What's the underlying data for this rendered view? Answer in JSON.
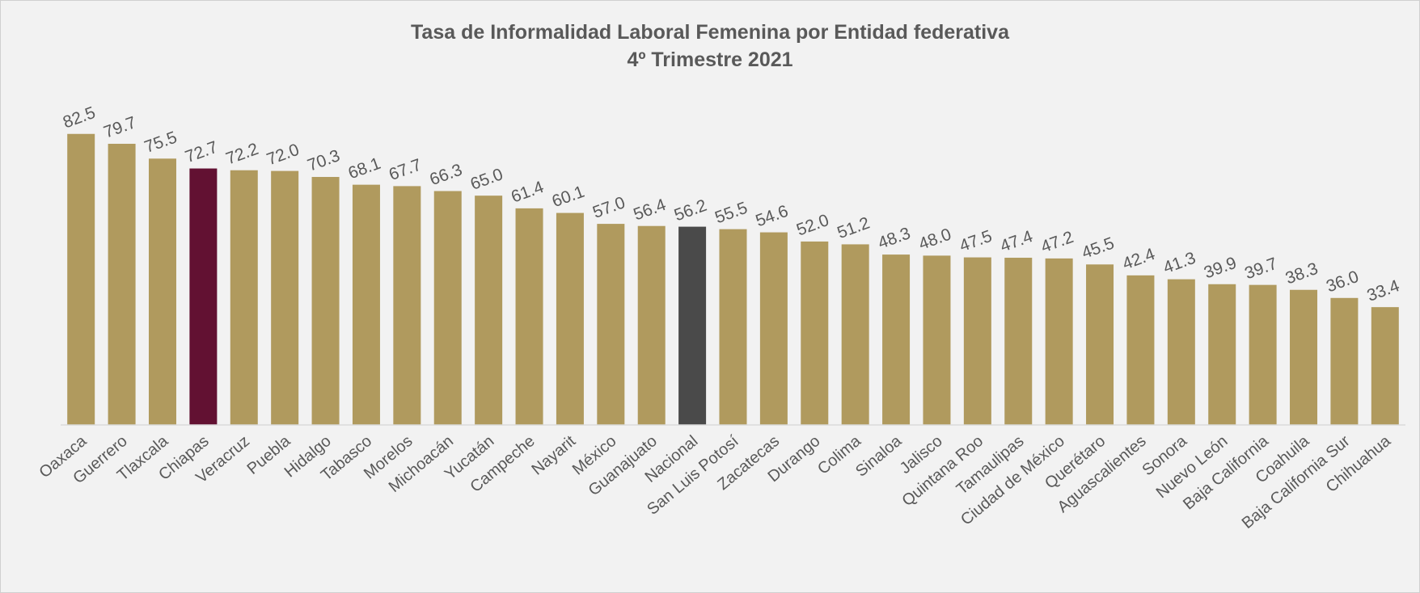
{
  "chart_data": {
    "type": "bar",
    "title": "Tasa de Informalidad Laboral Femenina por Entidad federativa",
    "subtitle": "4º Trimestre 2021",
    "categories": [
      "Oaxaca",
      "Guerrero",
      "Tlaxcala",
      "Chiapas",
      "Veracruz",
      "Puebla",
      "Hidalgo",
      "Tabasco",
      "Morelos",
      "Michoacán",
      "Yucatán",
      "Campeche",
      "Nayarit",
      "México",
      "Guanajuato",
      "Nacional",
      "San Luis Potosí",
      "Zacatecas",
      "Durango",
      "Colima",
      "Sinaloa",
      "Jalisco",
      "Quintana Roo",
      "Tamaulipas",
      "Ciudad de México",
      "Querétaro",
      "Aguascalientes",
      "Sonora",
      "Nuevo León",
      "Baja California",
      "Coahuila",
      "Baja California Sur",
      "Chihuahua"
    ],
    "values": [
      82.5,
      79.7,
      75.5,
      72.7,
      72.2,
      72.0,
      70.3,
      68.1,
      67.7,
      66.3,
      65.0,
      61.4,
      60.1,
      57.0,
      56.4,
      56.2,
      55.5,
      54.6,
      52.0,
      51.2,
      48.3,
      48.0,
      47.5,
      47.4,
      47.2,
      45.5,
      42.4,
      41.3,
      39.9,
      39.7,
      38.3,
      36.0,
      33.4
    ],
    "value_labels": [
      "82.5",
      "79.7",
      "75.5",
      "72.7",
      "72.2",
      "72.0",
      "70.3",
      "68.1",
      "67.7",
      "66.3",
      "65.0",
      "61.4",
      "60.1",
      "57.0",
      "56.4",
      "56.2",
      "55.5",
      "54.6",
      "52.0",
      "51.2",
      "48.3",
      "48.0",
      "47.5",
      "47.4",
      "47.2",
      "45.5",
      "42.4",
      "41.3",
      "39.9",
      "39.7",
      "38.3",
      "36.0",
      "33.4"
    ],
    "colors": [
      "#b09a5e",
      "#b09a5e",
      "#b09a5e",
      "#621132",
      "#b09a5e",
      "#b09a5e",
      "#b09a5e",
      "#b09a5e",
      "#b09a5e",
      "#b09a5e",
      "#b09a5e",
      "#b09a5e",
      "#b09a5e",
      "#b09a5e",
      "#b09a5e",
      "#4a4a4a",
      "#b09a5e",
      "#b09a5e",
      "#b09a5e",
      "#b09a5e",
      "#b09a5e",
      "#b09a5e",
      "#b09a5e",
      "#b09a5e",
      "#b09a5e",
      "#b09a5e",
      "#b09a5e",
      "#b09a5e",
      "#b09a5e",
      "#b09a5e",
      "#b09a5e",
      "#b09a5e",
      "#b09a5e"
    ],
    "ylim": [
      0,
      90
    ]
  }
}
